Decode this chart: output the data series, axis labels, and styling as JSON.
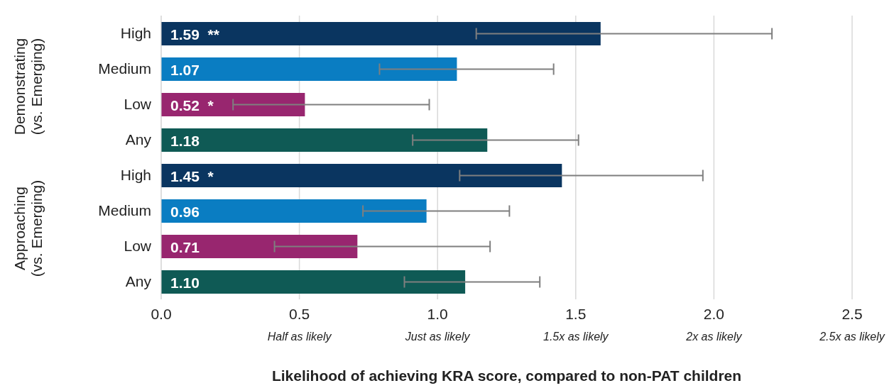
{
  "chart_data": {
    "type": "bar",
    "orientation": "horizontal",
    "xlabel": "Likelihood of achieving KRA score, compared to non-PAT children",
    "categories": [
      "High",
      "Medium",
      "Low",
      "Any",
      "High",
      "Medium",
      "Low",
      "Any"
    ],
    "values": [
      1.59,
      1.07,
      0.52,
      1.18,
      1.45,
      0.96,
      0.71,
      1.1
    ],
    "value_labels": [
      "1.59  **",
      "1.07",
      "0.52  *",
      "1.18",
      "1.45  *",
      "0.96",
      "0.71",
      "1.10"
    ],
    "colors": [
      "#0a3560",
      "#0a7dc2",
      "#98266f",
      "#0f5a55",
      "#0a3560",
      "#0a7dc2",
      "#98266f",
      "#0f5a55"
    ],
    "errors": [
      [
        1.14,
        2.21
      ],
      [
        0.79,
        1.42
      ],
      [
        0.26,
        0.97
      ],
      [
        0.91,
        1.51
      ],
      [
        1.08,
        1.96
      ],
      [
        0.73,
        1.26
      ],
      [
        0.41,
        1.19
      ],
      [
        0.88,
        1.37
      ]
    ],
    "annotations": [
      "Demonstrating\n(vs. Emerging)",
      "Approaching\n(vs. Emerging)"
    ],
    "xlim": [
      0,
      2.5
    ],
    "xticks": [
      {
        "value": 0,
        "label": "0.0"
      },
      {
        "value": 0.5,
        "label": "0.5\nHalf as likely"
      },
      {
        "value": 1,
        "label": "1.0\nJust as likely"
      },
      {
        "value": 1.5,
        "label": "1.5\n1.5x as likely"
      },
      {
        "value": 2,
        "label": "2.0\n2x as likely"
      },
      {
        "value": 2.5,
        "label": "2.5\n2.5x as likely"
      }
    ],
    "grid": "x",
    "legend": false
  }
}
